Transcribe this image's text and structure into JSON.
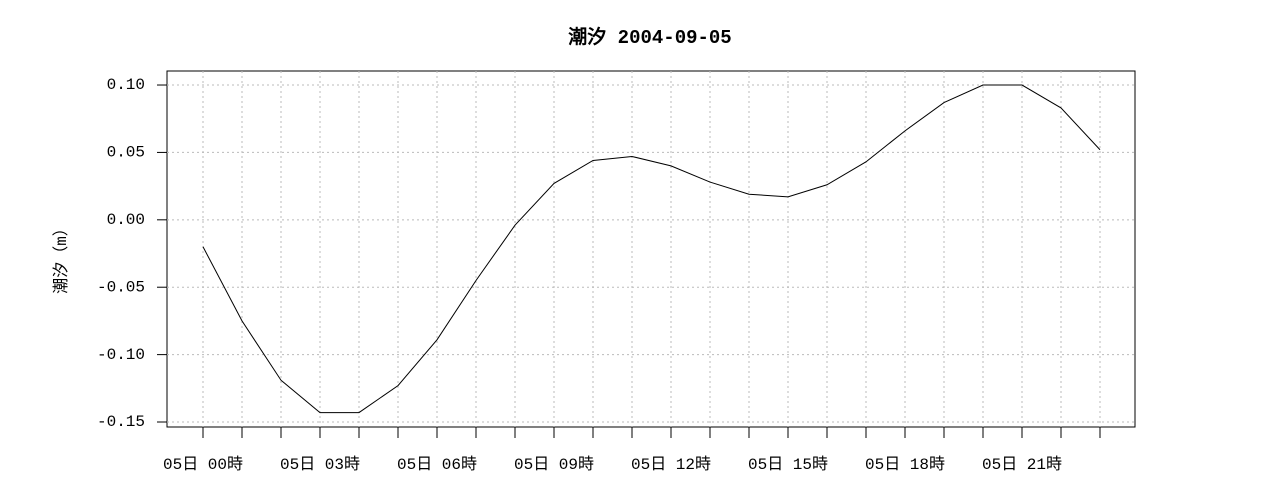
{
  "chart_data": {
    "type": "line",
    "title": "潮汐 2004-09-05",
    "y_label": "潮汐（m）",
    "categories": [
      "05日 00時",
      null,
      null,
      "05日 03時",
      null,
      null,
      "05日 06時",
      null,
      null,
      "05日 09時",
      null,
      null,
      "05日 12時",
      null,
      null,
      "05日 15時",
      null,
      null,
      "05日 18時",
      null,
      null,
      "05日 21時",
      null,
      null
    ],
    "series": [
      {
        "name": "潮汐",
        "color": "#000000",
        "values": [
          -0.02,
          -0.075,
          -0.119,
          -0.143,
          -0.143,
          -0.123,
          -0.089,
          -0.045,
          -0.004,
          0.027,
          0.044,
          0.047,
          0.04,
          0.028,
          0.019,
          0.017,
          0.026,
          0.043,
          0.066,
          0.087,
          0.1,
          0.1,
          0.083,
          0.052
        ]
      }
    ],
    "ylim": [
      -0.1537,
      0.1104
    ],
    "yticks": [
      {
        "value": 0.1,
        "label": "0.10"
      },
      0.05,
      {
        "value": 0,
        "label": "0.00"
      },
      -0.05,
      {
        "value": -0.1,
        "label": "-0.10"
      },
      -0.15
    ],
    "grid": true
  }
}
